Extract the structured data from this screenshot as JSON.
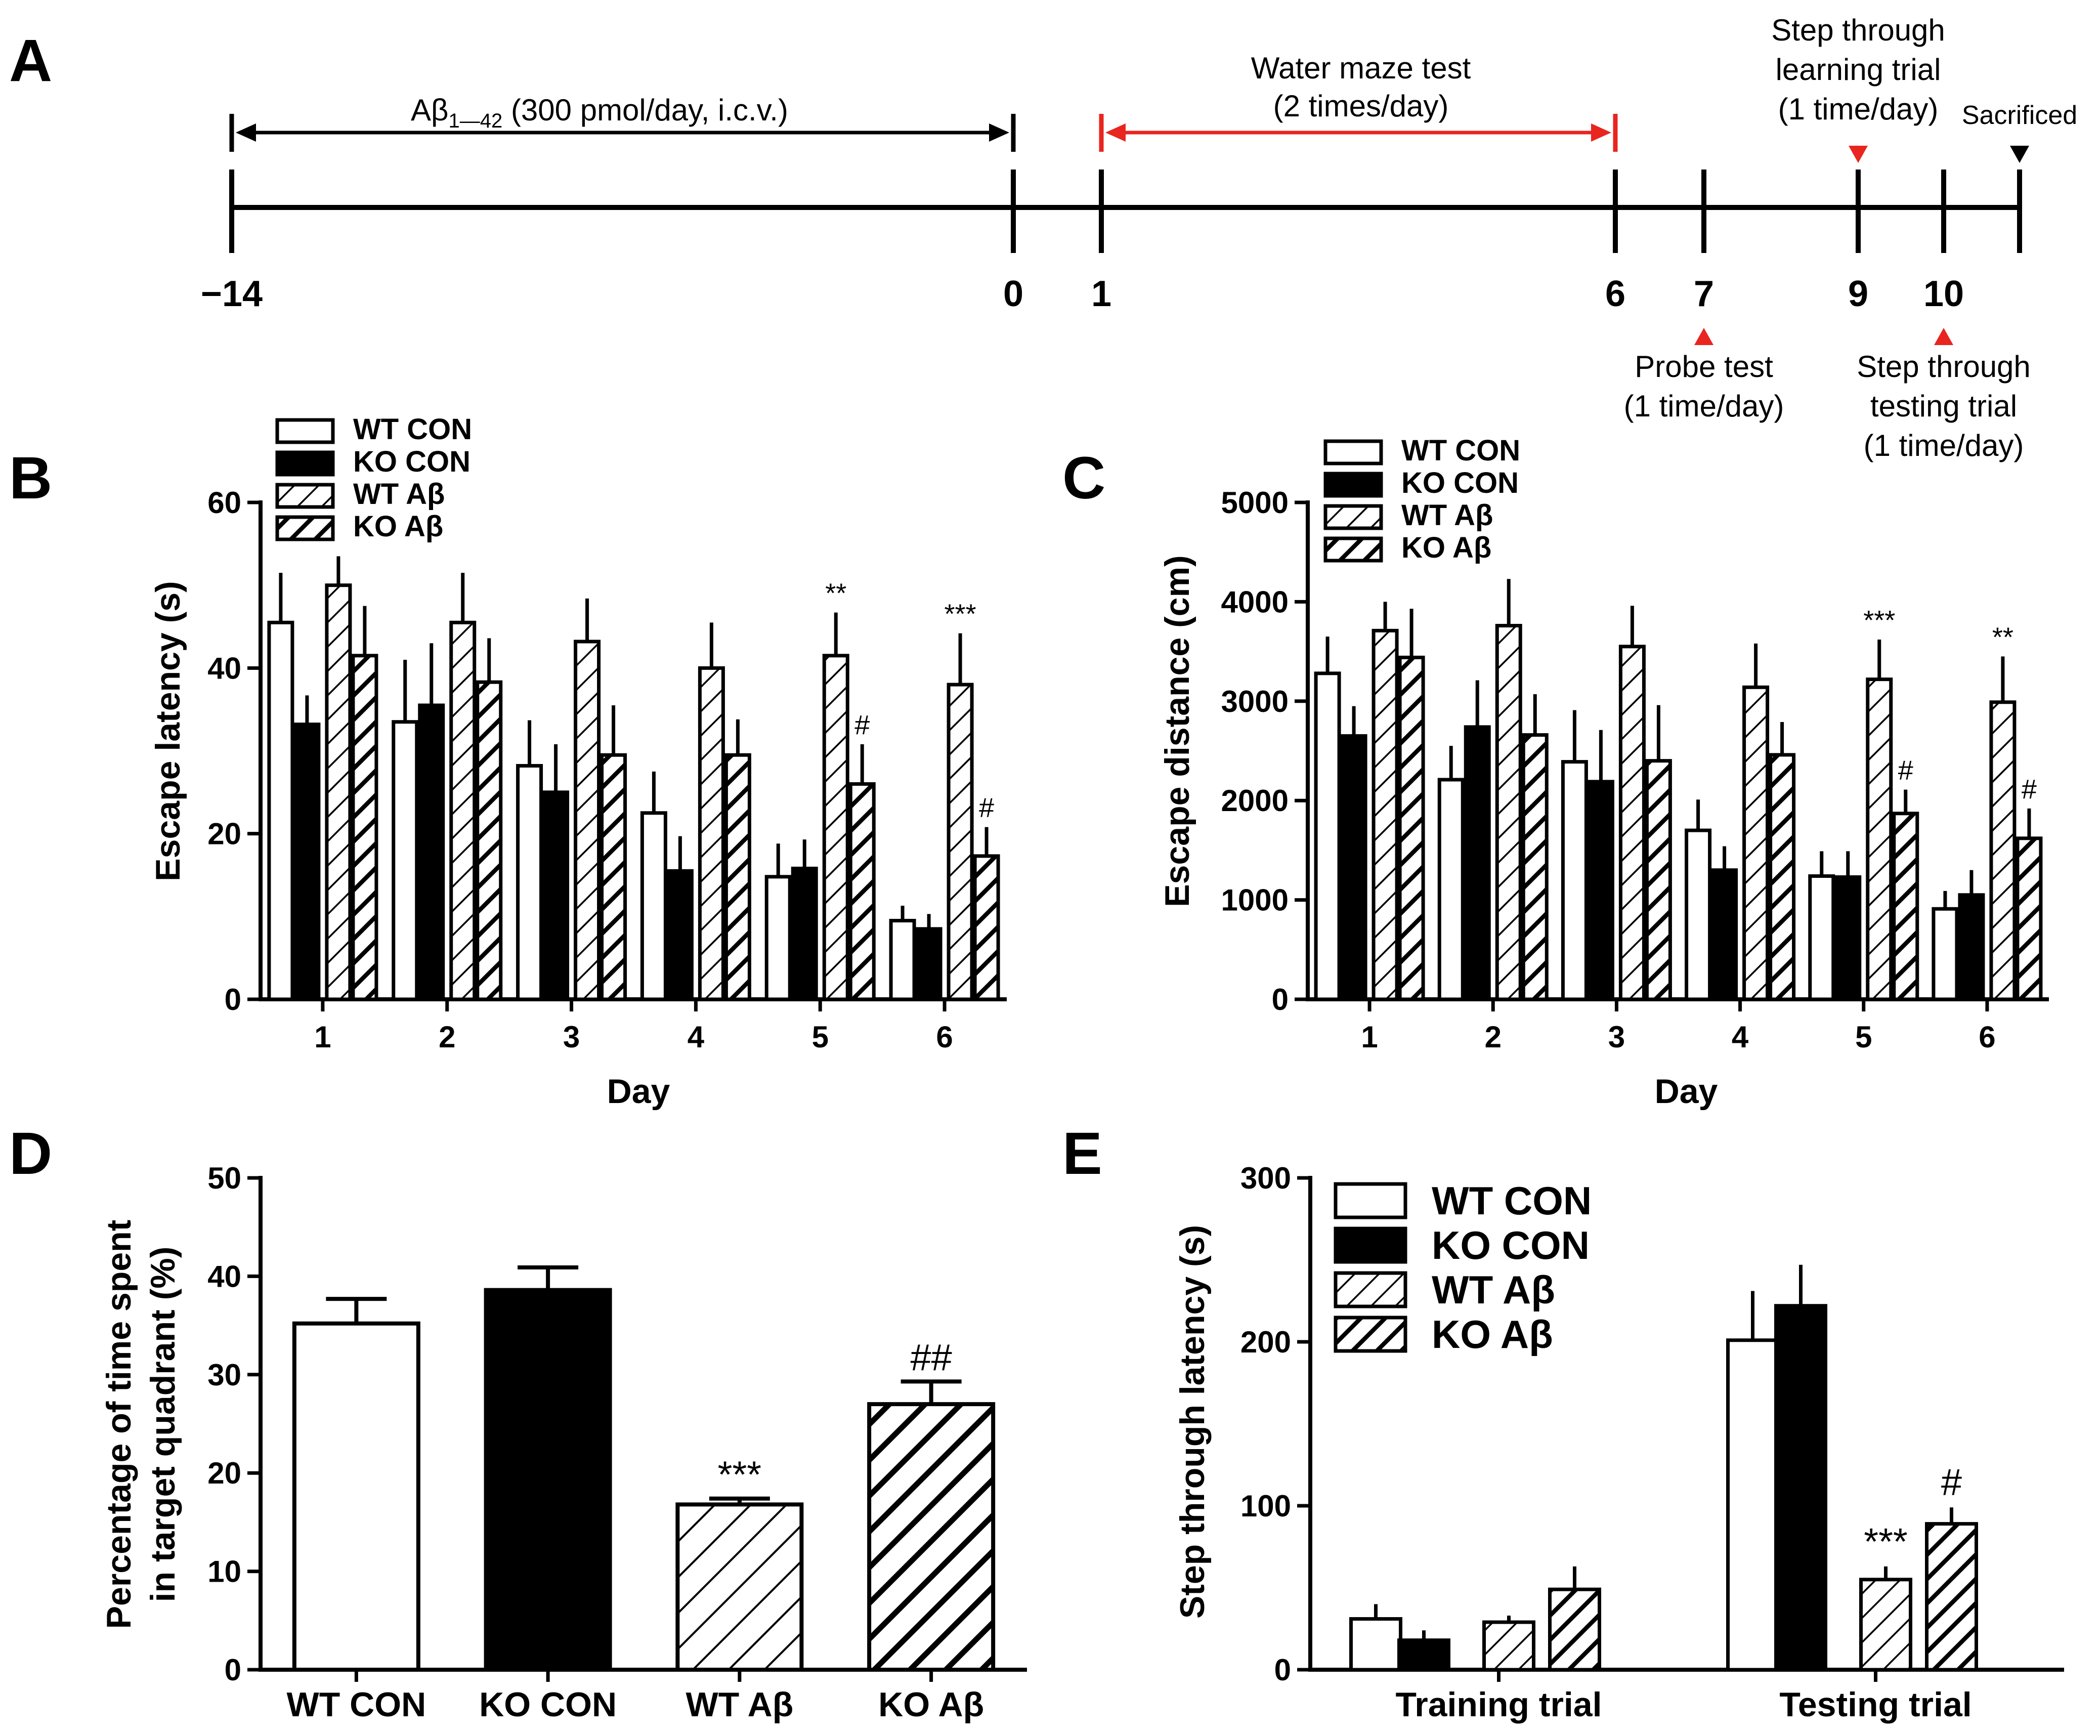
{
  "figure": {
    "panel_labels": {
      "a": "A",
      "b": "B",
      "c": "C",
      "d": "D",
      "e": "E"
    }
  },
  "timeline": {
    "ticks": [
      "−14",
      "0",
      "1",
      "6",
      "7",
      "9",
      "10"
    ],
    "injection_label_main": "Aβ",
    "injection_label_sub": "1—42",
    "injection_label_rest": " (300 pmol/day, i.c.v.)",
    "water_maze_line1": "Water maze test",
    "water_maze_line2": "(2 times/day)",
    "learning_line1": "Step through",
    "learning_line2": "learning trial",
    "learning_line3": "(1 time/day)",
    "sacrificed": "Sacrificed",
    "probe_line1": "Probe test",
    "probe_line2": "(1 time/day)",
    "testing_line1": "Step through",
    "testing_line2": "testing trial",
    "testing_line3": "(1 time/day)",
    "colors": {
      "water_maze": "#e8251f",
      "learning_marker": "#e8251f",
      "probe_marker": "#e8251f",
      "testing_marker": "#e8251f",
      "sacrificed_marker": "#000000"
    }
  },
  "chart_data": [
    {
      "id": "B",
      "type": "bar",
      "title": "",
      "xlabel": "Day",
      "ylabel": "Escape latency (s)",
      "ylim": [
        0,
        60
      ],
      "yticks": [
        "0",
        "20",
        "40",
        "60"
      ],
      "ytick_values": [
        0,
        20,
        40,
        60
      ],
      "categories": [
        "1",
        "2",
        "3",
        "4",
        "5",
        "6"
      ],
      "legend": [
        "WT CON",
        "KO CON",
        "WT Aβ",
        "KO Aβ"
      ],
      "series": [
        {
          "name": "WT CON",
          "pattern": "empty",
          "values": [
            45.5,
            33.5,
            28.2,
            22.5,
            14.8,
            9.5
          ],
          "errors": [
            6.0,
            7.5,
            5.5,
            5.0,
            4.0,
            1.8
          ]
        },
        {
          "name": "KO CON",
          "pattern": "solid",
          "values": [
            33.2,
            35.5,
            25.0,
            15.5,
            15.8,
            8.5
          ],
          "errors": [
            3.5,
            7.5,
            5.8,
            4.2,
            3.5,
            1.8
          ]
        },
        {
          "name": "WT Aβ",
          "pattern": "hatch_light",
          "values": [
            50.0,
            45.5,
            43.2,
            40.0,
            41.5,
            38.0
          ],
          "errors": [
            3.5,
            6.0,
            5.2,
            5.5,
            5.2,
            6.2
          ]
        },
        {
          "name": "KO Aβ",
          "pattern": "hatch_bold",
          "values": [
            41.5,
            38.3,
            29.5,
            29.5,
            26.0,
            17.3
          ],
          "errors": [
            6.0,
            5.3,
            6.0,
            4.3,
            4.8,
            3.5
          ]
        }
      ],
      "annotations": [
        {
          "category": "5",
          "series": "WT Aβ",
          "text": "**"
        },
        {
          "category": "5",
          "series": "KO Aβ",
          "text": "#"
        },
        {
          "category": "6",
          "series": "WT Aβ",
          "text": "***"
        },
        {
          "category": "6",
          "series": "KO Aβ",
          "text": "#"
        }
      ]
    },
    {
      "id": "C",
      "type": "bar",
      "title": "",
      "xlabel": "Day",
      "ylabel": "Escape distance (cm)",
      "ylim": [
        0,
        5000
      ],
      "yticks": [
        "0",
        "1000",
        "2000",
        "3000",
        "4000",
        "5000"
      ],
      "ytick_values": [
        0,
        1000,
        2000,
        3000,
        4000,
        5000
      ],
      "categories": [
        "1",
        "2",
        "3",
        "4",
        "5",
        "6"
      ],
      "legend": [
        "WT CON",
        "KO CON",
        "WT Aβ",
        "KO Aβ"
      ],
      "series": [
        {
          "name": "WT CON",
          "pattern": "empty",
          "values": [
            3280,
            2210,
            2390,
            1700,
            1240,
            910
          ],
          "errors": [
            370,
            340,
            520,
            310,
            250,
            180
          ]
        },
        {
          "name": "KO CON",
          "pattern": "solid",
          "values": [
            2650,
            2740,
            2190,
            1300,
            1230,
            1050
          ],
          "errors": [
            300,
            470,
            520,
            240,
            260,
            250
          ]
        },
        {
          "name": "WT Aβ",
          "pattern": "hatch_light",
          "values": [
            3710,
            3760,
            3550,
            3140,
            3220,
            2990
          ],
          "errors": [
            290,
            470,
            410,
            440,
            400,
            460
          ]
        },
        {
          "name": "KO Aβ",
          "pattern": "hatch_bold",
          "values": [
            3440,
            2660,
            2400,
            2460,
            1870,
            1620
          ],
          "errors": [
            490,
            410,
            560,
            330,
            240,
            300
          ]
        }
      ],
      "annotations": [
        {
          "category": "5",
          "series": "WT Aβ",
          "text": "***"
        },
        {
          "category": "5",
          "series": "KO Aβ",
          "text": "#"
        },
        {
          "category": "6",
          "series": "WT Aβ",
          "text": "**"
        },
        {
          "category": "6",
          "series": "KO Aβ",
          "text": "#"
        }
      ]
    },
    {
      "id": "D",
      "type": "bar",
      "title": "",
      "xlabel": "",
      "ylabel_line1": "Percentage of time spent",
      "ylabel_line2": "in target quadrant (%)",
      "ylim": [
        0,
        50
      ],
      "yticks": [
        "0",
        "10",
        "20",
        "30",
        "40",
        "50"
      ],
      "ytick_values": [
        0,
        10,
        20,
        30,
        40,
        50
      ],
      "categories": [
        "WT CON",
        "KO CON",
        "WT Aβ",
        "KO Aβ"
      ],
      "patterns": [
        "empty",
        "solid",
        "hatch_light",
        "hatch_bold"
      ],
      "values": [
        35.2,
        38.6,
        16.8,
        27.0
      ],
      "errors": [
        2.5,
        2.3,
        0.6,
        2.3
      ],
      "annotations": [
        {
          "category": "WT Aβ",
          "text": "***"
        },
        {
          "category": "KO Aβ",
          "text": "##"
        }
      ]
    },
    {
      "id": "E",
      "type": "bar",
      "title": "",
      "xlabel": "",
      "ylabel": "Step through latency (s)",
      "ylim": [
        0,
        300
      ],
      "yticks": [
        "0",
        "100",
        "200",
        "300"
      ],
      "ytick_values": [
        0,
        100,
        200,
        300
      ],
      "categories": [
        "Training trial",
        "Testing trial"
      ],
      "legend": [
        "WT CON",
        "KO CON",
        "WT Aβ",
        "KO Aβ"
      ],
      "series": [
        {
          "name": "WT CON",
          "pattern": "empty",
          "values": [
            31,
            201
          ],
          "errors": [
            9,
            30
          ]
        },
        {
          "name": "KO CON",
          "pattern": "solid",
          "values": [
            18,
            222
          ],
          "errors": [
            6,
            25
          ]
        },
        {
          "name": "WT Aβ",
          "pattern": "hatch_light",
          "values": [
            29,
            55
          ],
          "errors": [
            4,
            8
          ]
        },
        {
          "name": "KO Aβ",
          "pattern": "hatch_bold",
          "values": [
            49,
            89
          ],
          "errors": [
            14,
            10
          ]
        }
      ],
      "annotations": [
        {
          "category": "Testing trial",
          "series": "WT Aβ",
          "text": "***"
        },
        {
          "category": "Testing trial",
          "series": "KO Aβ",
          "text": "#"
        }
      ]
    }
  ]
}
